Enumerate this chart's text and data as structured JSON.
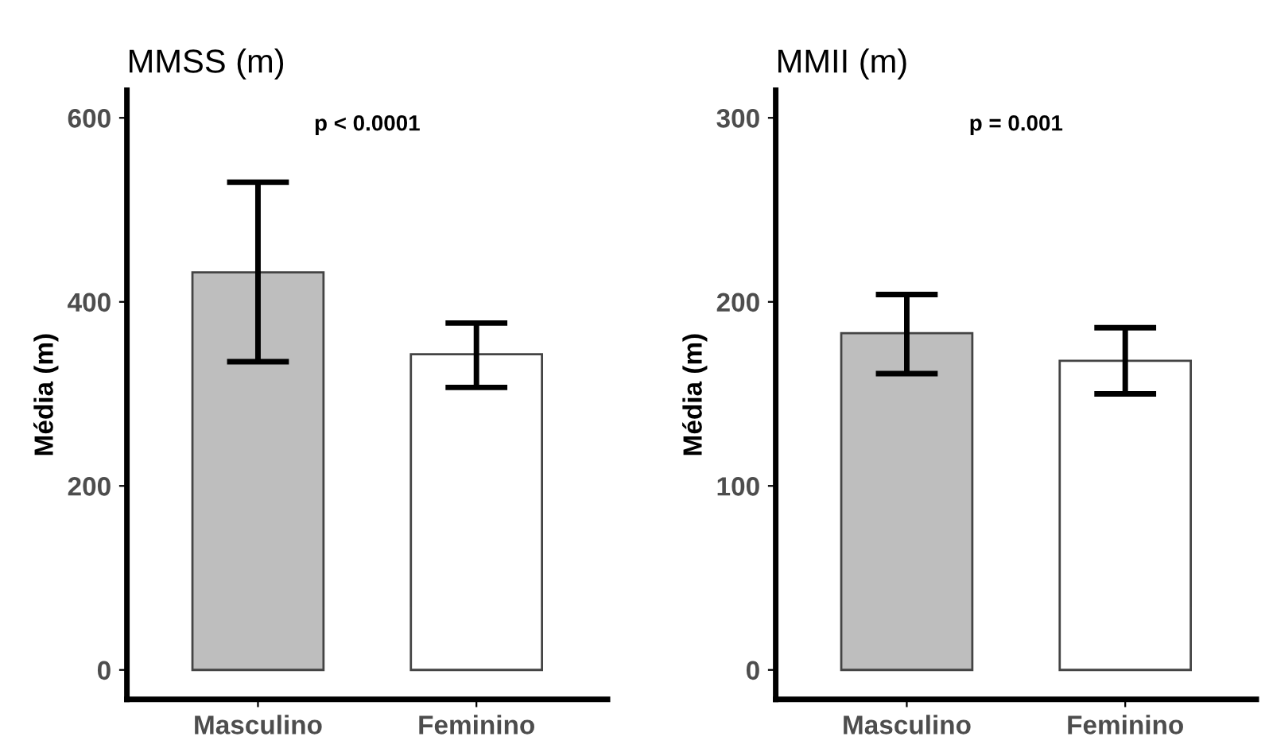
{
  "chart_data": [
    {
      "type": "bar",
      "title": "MMSS (m)",
      "ylabel": "Média (m)",
      "categories": [
        "Masculino",
        "Feminino"
      ],
      "values": [
        432,
        343
      ],
      "colors": [
        "#bebebe",
        "#ffffff"
      ],
      "errors": [
        [
          335,
          530
        ],
        [
          307,
          377
        ]
      ],
      "ylim": [
        -32,
        630
      ],
      "yticks": [
        0,
        200,
        400,
        600
      ],
      "annotations": [
        "p < 0.0001"
      ],
      "grid": false,
      "legend": false
    },
    {
      "type": "bar",
      "title": "MMII (m)",
      "ylabel": "Média (m)",
      "categories": [
        "Masculino",
        "Feminino"
      ],
      "values": [
        183,
        168
      ],
      "colors": [
        "#bebebe",
        "#ffffff"
      ],
      "errors": [
        [
          161,
          204
        ],
        [
          150,
          186
        ]
      ],
      "ylim": [
        -16,
        315
      ],
      "yticks": [
        0,
        100,
        200,
        300
      ],
      "annotations": [
        "p = 0.001"
      ],
      "grid": false,
      "legend": false
    }
  ]
}
